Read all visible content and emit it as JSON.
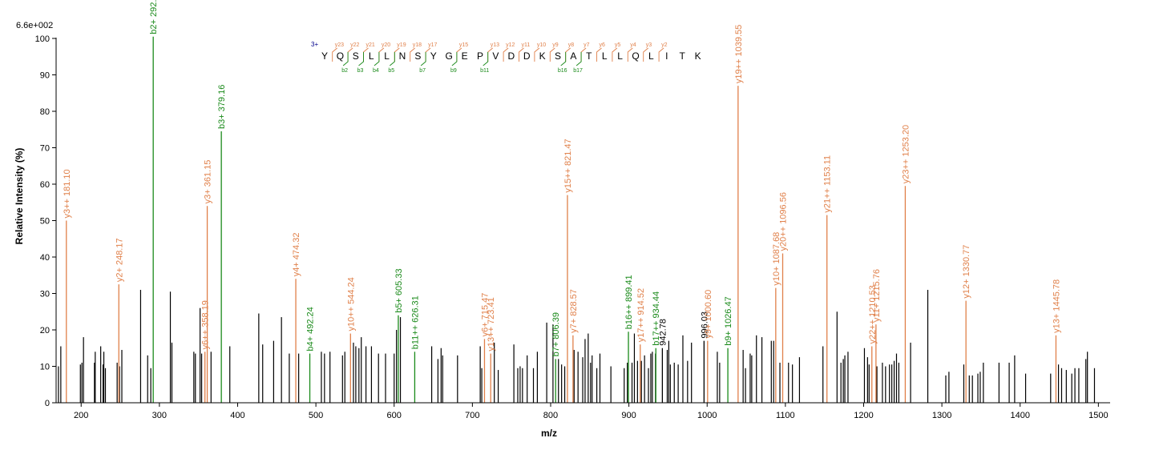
{
  "chart_data": {
    "type": "bar",
    "max_intensity_label": "6.6e+002",
    "xlabel": "m/z",
    "ylabel": "Relative   Intensity (%)",
    "xlim": [
      168,
      1515
    ],
    "ylim": [
      0,
      100
    ],
    "x_ticks": [
      200,
      300,
      400,
      500,
      600,
      700,
      800,
      900,
      1000,
      1100,
      1200,
      1300,
      1400,
      1500
    ],
    "y_ticks": [
      0,
      10,
      20,
      30,
      40,
      50,
      60,
      70,
      80,
      90,
      100
    ],
    "colors": {
      "b_ion": "#1a8a1a",
      "y_ion": "#e0804a",
      "unassigned": "#000000",
      "charge": "#00008b"
    },
    "sequence": {
      "charge": "3+",
      "residues": [
        "Y",
        "Q",
        "S",
        "L",
        "L",
        "N",
        "S",
        "Y",
        "G",
        "E",
        "P",
        "V",
        "D",
        "D",
        "K",
        "S",
        "A",
        "T",
        "L",
        "L",
        "Q",
        "L",
        "I",
        "T",
        "K"
      ],
      "y_ions": [
        {
          "after": 1,
          "label": "y",
          "num": "23"
        },
        {
          "after": 2,
          "label": "y",
          "num": "22"
        },
        {
          "after": 3,
          "label": "y",
          "num": "21"
        },
        {
          "after": 4,
          "label": "y",
          "num": "20"
        },
        {
          "after": 5,
          "label": "y",
          "num": "19"
        },
        {
          "after": 6,
          "label": "y",
          "num": "18"
        },
        {
          "after": 7,
          "label": "y",
          "num": "17"
        },
        {
          "after": 9,
          "label": "y",
          "num": "15"
        },
        {
          "after": 11,
          "label": "y",
          "num": "13"
        },
        {
          "after": 12,
          "label": "y",
          "num": "12"
        },
        {
          "after": 13,
          "label": "y",
          "num": "11"
        },
        {
          "after": 14,
          "label": "y",
          "num": "10"
        },
        {
          "after": 15,
          "label": "y",
          "num": "9"
        },
        {
          "after": 16,
          "label": "y",
          "num": "8"
        },
        {
          "after": 17,
          "label": "y",
          "num": "7"
        },
        {
          "after": 18,
          "label": "y",
          "num": "6"
        },
        {
          "after": 19,
          "label": "y",
          "num": "5"
        },
        {
          "after": 20,
          "label": "y",
          "num": "4"
        },
        {
          "after": 21,
          "label": "y",
          "num": "3"
        },
        {
          "after": 22,
          "label": "y",
          "num": "2"
        }
      ],
      "b_ions": [
        {
          "after": 2,
          "label": "b",
          "num": "2"
        },
        {
          "after": 3,
          "label": "b",
          "num": "3"
        },
        {
          "after": 4,
          "label": "b",
          "num": "4"
        },
        {
          "after": 5,
          "label": "b",
          "num": "5"
        },
        {
          "after": 7,
          "label": "b",
          "num": "7"
        },
        {
          "after": 9,
          "label": "b",
          "num": "9"
        },
        {
          "after": 11,
          "label": "b",
          "num": "11"
        },
        {
          "after": 16,
          "label": "b",
          "num": "16"
        },
        {
          "after": 17,
          "label": "b",
          "num": "17"
        }
      ]
    },
    "labeled_peaks": [
      {
        "mz": 181.1,
        "intensity": 50,
        "ion": "y",
        "label": "y3++ 181.10"
      },
      {
        "mz": 248.17,
        "intensity": 32.5,
        "ion": "y",
        "label": "y2+ 248.17"
      },
      {
        "mz": 292.12,
        "intensity": 100.5,
        "ion": "b",
        "label": "b2+ 292.12"
      },
      {
        "mz": 358.19,
        "intensity": 14,
        "ion": "y",
        "label": "y6++ 358.19"
      },
      {
        "mz": 361.15,
        "intensity": 54,
        "ion": "y",
        "label": "y3+ 361.15"
      },
      {
        "mz": 379.16,
        "intensity": 74.5,
        "ion": "b",
        "label": "b3+ 379.16"
      },
      {
        "mz": 474.32,
        "intensity": 34,
        "ion": "y",
        "label": "y4+ 474.32"
      },
      {
        "mz": 492.24,
        "intensity": 13.5,
        "ion": "b",
        "label": "b4+ 492.24"
      },
      {
        "mz": 544.24,
        "intensity": 19,
        "ion": "y",
        "label": "y10++ 544.24"
      },
      {
        "mz": 605.33,
        "intensity": 24,
        "ion": "b",
        "label": "b5+ 605.33"
      },
      {
        "mz": 626.31,
        "intensity": 14,
        "ion": "b",
        "label": "b11++ 626.31"
      },
      {
        "mz": 715.47,
        "intensity": 17.5,
        "ion": "y",
        "label": "y6+ 715.47"
      },
      {
        "mz": 723.41,
        "intensity": 13.5,
        "ion": "y",
        "label": "y13++ 723.41"
      },
      {
        "mz": 806.39,
        "intensity": 12,
        "ion": "b",
        "label": "b7+ 806.39"
      },
      {
        "mz": 821.47,
        "intensity": 57,
        "ion": "y",
        "label": "y15++ 821.47"
      },
      {
        "mz": 828.57,
        "intensity": 18.5,
        "ion": "y",
        "label": "y7+ 828.57"
      },
      {
        "mz": 899.41,
        "intensity": 19.5,
        "ion": "b",
        "label": "b16++ 899.41"
      },
      {
        "mz": 914.52,
        "intensity": 16,
        "ion": "y",
        "label": "y17++ 914.52"
      },
      {
        "mz": 934.44,
        "intensity": 15,
        "ion": "b",
        "label": "b17++ 934.44"
      },
      {
        "mz": 942.78,
        "intensity": 15,
        "ion": "unassigned",
        "label": "942.78"
      },
      {
        "mz": 996.03,
        "intensity": 17,
        "ion": "unassigned",
        "label": "996.03"
      },
      {
        "mz": 1000.6,
        "intensity": 17,
        "ion": "y",
        "label": "y9+ 1000.60"
      },
      {
        "mz": 1026.47,
        "intensity": 15,
        "ion": "b",
        "label": "b9+ 1026.47"
      },
      {
        "mz": 1039.55,
        "intensity": 87,
        "ion": "y",
        "label": "y19++ 1039.55"
      },
      {
        "mz": 1087.68,
        "intensity": 31.5,
        "ion": "y",
        "label": "y10+ 1087.68"
      },
      {
        "mz": 1096.56,
        "intensity": 41,
        "ion": "y",
        "label": "y20++ 1096.56"
      },
      {
        "mz": 1153.11,
        "intensity": 51.5,
        "ion": "y",
        "label": "y21++ 1153.11"
      },
      {
        "mz": 1210.53,
        "intensity": 15.5,
        "ion": "y",
        "label": "y22++ 1210.53"
      },
      {
        "mz": 1215.76,
        "intensity": 21.5,
        "ion": "y",
        "label": "y11+ 1215.76"
      },
      {
        "mz": 1253.2,
        "intensity": 59.5,
        "ion": "y",
        "label": "y23++ 1253.20"
      },
      {
        "mz": 1330.77,
        "intensity": 28,
        "ion": "y",
        "label": "y12+ 1330.77"
      },
      {
        "mz": 1445.78,
        "intensity": 18.5,
        "ion": "y",
        "label": "y13+ 1445.78"
      }
    ],
    "unlabeled_peaks": [
      [
        171,
        10
      ],
      [
        174,
        15.5
      ],
      [
        199,
        10.5
      ],
      [
        201,
        11
      ],
      [
        203,
        18
      ],
      [
        217,
        11
      ],
      [
        218,
        14
      ],
      [
        225,
        15.5
      ],
      [
        228,
        10.5
      ],
      [
        229,
        14
      ],
      [
        231,
        9.5
      ],
      [
        246,
        11
      ],
      [
        249,
        10
      ],
      [
        252,
        14.5
      ],
      [
        276,
        31
      ],
      [
        285,
        13
      ],
      [
        289,
        9.5
      ],
      [
        314,
        30.5
      ],
      [
        316,
        16.5
      ],
      [
        344,
        14
      ],
      [
        346,
        13.5
      ],
      [
        352,
        26
      ],
      [
        354,
        13.5
      ],
      [
        366,
        14
      ],
      [
        390,
        15.5
      ],
      [
        427,
        24.5
      ],
      [
        432,
        16
      ],
      [
        446,
        17
      ],
      [
        456,
        23.5
      ],
      [
        466,
        13.5
      ],
      [
        478,
        13.5
      ],
      [
        507,
        14
      ],
      [
        511,
        13.5
      ],
      [
        518,
        14
      ],
      [
        534,
        13
      ],
      [
        537,
        14
      ],
      [
        548,
        16.5
      ],
      [
        551,
        15.5
      ],
      [
        555,
        15
      ],
      [
        558,
        18
      ],
      [
        564,
        15.5
      ],
      [
        571,
        15.5
      ],
      [
        580,
        13.5
      ],
      [
        589,
        13.5
      ],
      [
        600,
        13.5
      ],
      [
        603,
        20
      ],
      [
        608,
        23.5
      ],
      [
        648,
        15.5
      ],
      [
        656,
        12
      ],
      [
        660,
        15
      ],
      [
        662,
        13
      ],
      [
        681,
        13
      ],
      [
        710,
        15.5
      ],
      [
        712,
        9.5
      ],
      [
        728,
        16.5
      ],
      [
        733,
        9
      ],
      [
        753,
        16
      ],
      [
        758,
        9.5
      ],
      [
        761,
        10
      ],
      [
        764,
        9.5
      ],
      [
        770,
        13
      ],
      [
        778,
        9.5
      ],
      [
        783,
        14
      ],
      [
        795,
        22
      ],
      [
        803,
        21.5
      ],
      [
        810,
        12
      ],
      [
        814,
        10.5
      ],
      [
        818,
        10
      ],
      [
        830,
        14.5
      ],
      [
        835,
        14
      ],
      [
        841,
        12.5
      ],
      [
        844,
        17.5
      ],
      [
        848,
        19
      ],
      [
        851,
        11
      ],
      [
        853,
        13
      ],
      [
        859,
        9.5
      ],
      [
        863,
        13.5
      ],
      [
        877,
        10
      ],
      [
        894,
        9.5
      ],
      [
        898,
        11
      ],
      [
        904,
        11
      ],
      [
        907,
        19
      ],
      [
        911,
        11.5
      ],
      [
        916,
        11.5
      ],
      [
        920,
        13
      ],
      [
        925,
        9.5
      ],
      [
        928,
        13.5
      ],
      [
        930,
        14
      ],
      [
        934,
        13.5
      ],
      [
        949,
        14.5
      ],
      [
        951,
        17
      ],
      [
        953,
        10.5
      ],
      [
        958,
        11
      ],
      [
        963,
        10.5
      ],
      [
        969,
        18.5
      ],
      [
        975,
        11.5
      ],
      [
        980,
        16.5
      ],
      [
        1013,
        14
      ],
      [
        1016,
        11
      ],
      [
        1046,
        14.5
      ],
      [
        1049,
        9.5
      ],
      [
        1055,
        13.5
      ],
      [
        1057,
        13
      ],
      [
        1063,
        18.5
      ],
      [
        1070,
        18
      ],
      [
        1082,
        17
      ],
      [
        1085,
        17
      ],
      [
        1093,
        11
      ],
      [
        1104,
        11
      ],
      [
        1109,
        10.5
      ],
      [
        1118,
        12.5
      ],
      [
        1148,
        15.5
      ],
      [
        1166,
        25
      ],
      [
        1171,
        11
      ],
      [
        1174,
        12
      ],
      [
        1176,
        13
      ],
      [
        1180,
        14
      ],
      [
        1201,
        15
      ],
      [
        1205,
        12.5
      ],
      [
        1207,
        10.5
      ],
      [
        1217,
        10
      ],
      [
        1224,
        11
      ],
      [
        1228,
        10
      ],
      [
        1233,
        10.5
      ],
      [
        1236,
        10.5
      ],
      [
        1239,
        11.5
      ],
      [
        1242,
        13.5
      ],
      [
        1245,
        11
      ],
      [
        1260,
        16.5
      ],
      [
        1282,
        31
      ],
      [
        1305,
        7.5
      ],
      [
        1309,
        8.5
      ],
      [
        1328,
        10.5
      ],
      [
        1335,
        7.5
      ],
      [
        1339,
        7.5
      ],
      [
        1346,
        8
      ],
      [
        1349,
        8.5
      ],
      [
        1353,
        11
      ],
      [
        1373,
        11
      ],
      [
        1386,
        11
      ],
      [
        1393,
        13
      ],
      [
        1407,
        8
      ],
      [
        1439,
        8
      ],
      [
        1449,
        10.5
      ],
      [
        1453,
        9.5
      ],
      [
        1459,
        9
      ],
      [
        1466,
        8
      ],
      [
        1470,
        9.5
      ],
      [
        1475,
        9.5
      ],
      [
        1484,
        12
      ],
      [
        1486,
        14
      ],
      [
        1495,
        9.5
      ]
    ]
  }
}
